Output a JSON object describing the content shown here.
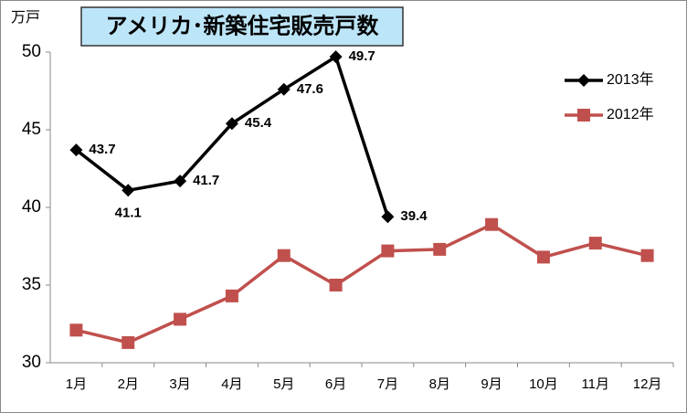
{
  "chart_data": {
    "type": "line",
    "title": "アメリカ･新築住宅販売戸数",
    "y_label": "万戸",
    "categories": [
      "1月",
      "2月",
      "3月",
      "4月",
      "5月",
      "6月",
      "7月",
      "8月",
      "9月",
      "10月",
      "11月",
      "12月"
    ],
    "series": [
      {
        "name": "2013年",
        "color": "#000000",
        "marker": "diamond",
        "data_labels": true,
        "values": [
          43.7,
          41.1,
          41.7,
          45.4,
          47.6,
          49.7,
          39.4,
          null,
          null,
          null,
          null,
          null
        ]
      },
      {
        "name": "2012年",
        "color": "#c0504d",
        "marker": "square",
        "data_labels": false,
        "values": [
          32.1,
          31.3,
          32.8,
          34.3,
          36.9,
          35.0,
          37.2,
          37.3,
          38.9,
          36.8,
          37.7,
          36.9
        ]
      }
    ],
    "ylim": [
      30,
      50
    ],
    "yticks": [
      30,
      35,
      40,
      45,
      50
    ],
    "grid": false,
    "legend": "right"
  }
}
